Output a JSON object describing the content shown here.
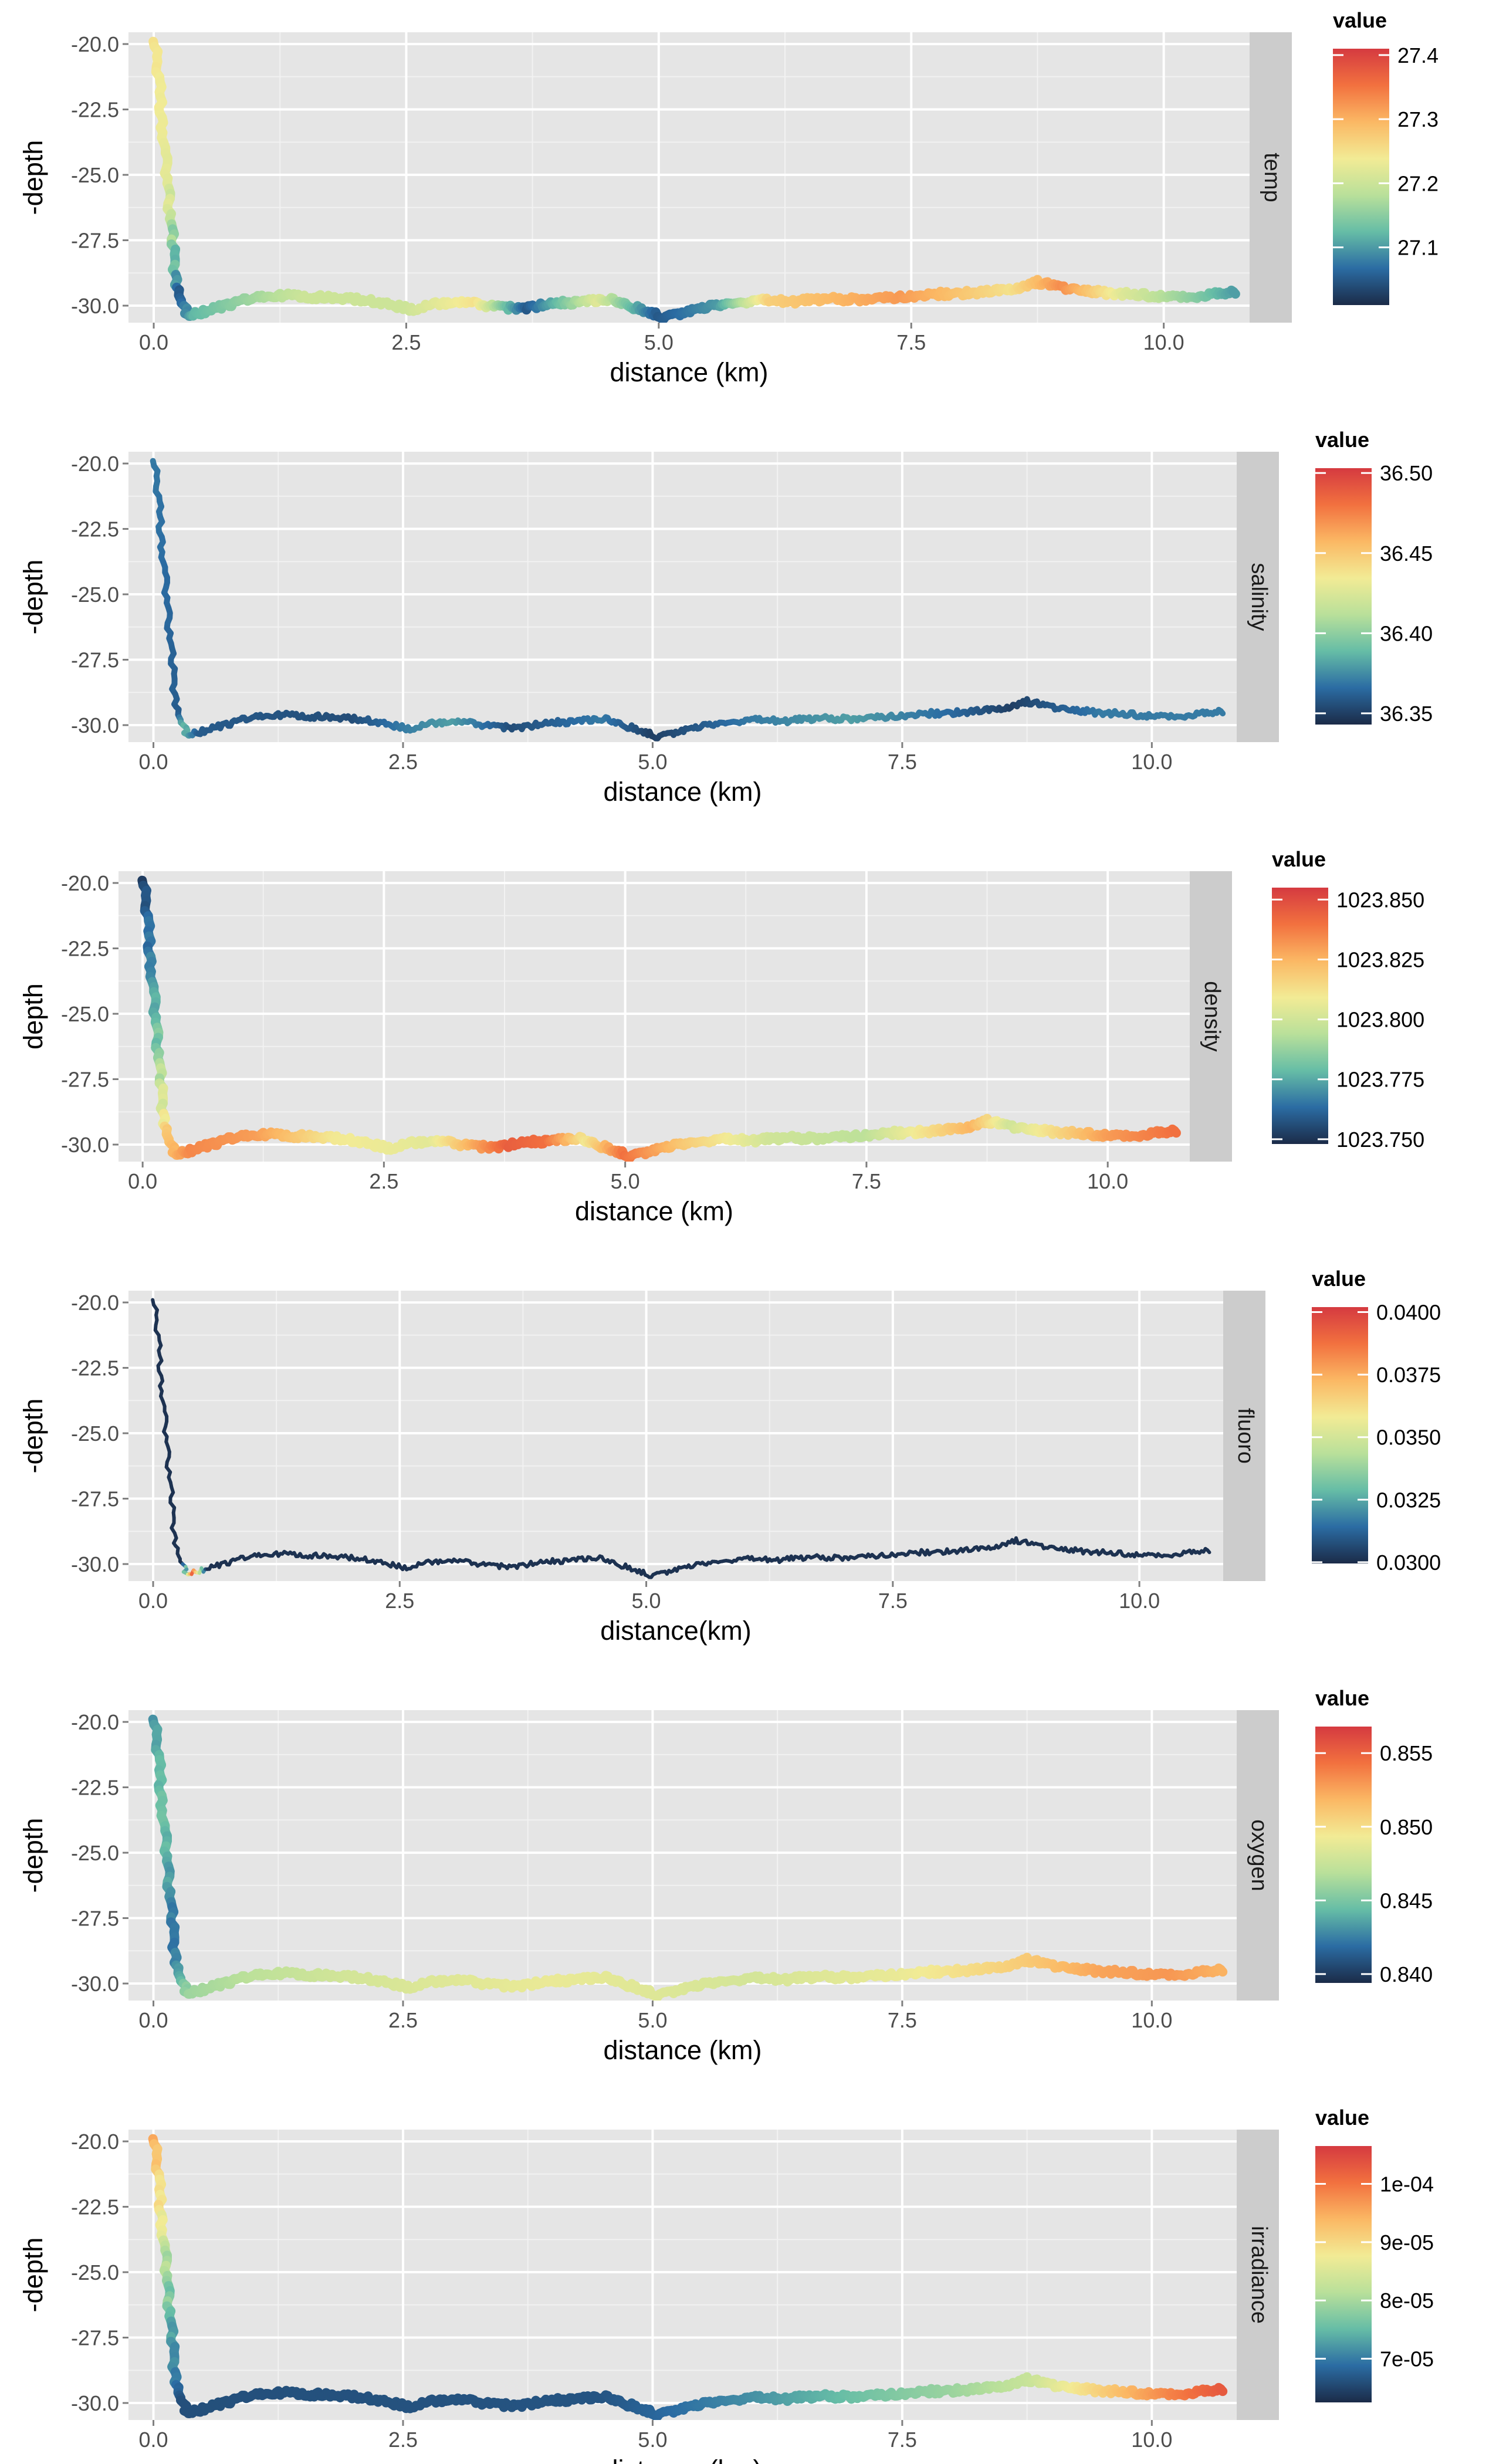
{
  "chart_data": [
    {
      "type": "line",
      "facet_label": "temp",
      "xlabel": "distance (km)",
      "ylabel": "-depth",
      "xlim": [
        -0.25,
        10.85
      ],
      "ylim": [
        -30.65,
        -19.55
      ],
      "x_ticks": [
        "0.0",
        "2.5",
        "5.0",
        "7.5",
        "10.0"
      ],
      "y_ticks": [
        "-20.0",
        "-22.5",
        "-25.0",
        "-27.5",
        "-30.0"
      ],
      "legend": {
        "title": "value",
        "min": 27.01,
        "max": 27.41,
        "ticks": [
          27.1,
          27.2,
          27.3,
          27.4
        ],
        "tick_labels": [
          "27.1",
          "27.2",
          "27.3",
          "27.4"
        ]
      },
      "color_profile": [
        [
          0,
          27.25
        ],
        [
          0.15,
          27.22
        ],
        [
          0.25,
          27.05
        ],
        [
          0.4,
          27.12
        ],
        [
          0.8,
          27.15
        ],
        [
          1.5,
          27.2
        ],
        [
          2.5,
          27.2
        ],
        [
          3.2,
          27.25
        ],
        [
          3.7,
          27.05
        ],
        [
          4.4,
          27.22
        ],
        [
          5.0,
          27.05
        ],
        [
          5.6,
          27.1
        ],
        [
          6.1,
          27.27
        ],
        [
          7.4,
          27.32
        ],
        [
          8.5,
          27.25
        ],
        [
          9.0,
          27.33
        ],
        [
          9.6,
          27.22
        ],
        [
          10.3,
          27.15
        ],
        [
          10.72,
          27.1
        ]
      ]
    },
    {
      "type": "line",
      "facet_label": "salinity",
      "xlabel": "distance (km)",
      "ylabel": "-depth",
      "xlim": [
        -0.25,
        10.85
      ],
      "ylim": [
        -30.65,
        -19.55
      ],
      "x_ticks": [
        "0.0",
        "2.5",
        "5.0",
        "7.5",
        "10.0"
      ],
      "y_ticks": [
        "-20.0",
        "-22.5",
        "-25.0",
        "-27.5",
        "-30.0"
      ],
      "legend": {
        "title": "value",
        "min": 36.343,
        "max": 36.503,
        "ticks": [
          36.35,
          36.4,
          36.45,
          36.5
        ],
        "tick_labels": [
          "36.35",
          "36.40",
          "36.45",
          "36.50"
        ]
      },
      "color_profile": [
        [
          0,
          36.37
        ],
        [
          0.25,
          36.36
        ],
        [
          0.3,
          36.39
        ],
        [
          0.45,
          36.36
        ],
        [
          2.0,
          36.355
        ],
        [
          2.5,
          36.37
        ],
        [
          3.0,
          36.38
        ],
        [
          3.6,
          36.355
        ],
        [
          4.5,
          36.37
        ],
        [
          5.0,
          36.35
        ],
        [
          6.0,
          36.37
        ],
        [
          7.0,
          36.38
        ],
        [
          8.0,
          36.365
        ],
        [
          8.6,
          36.35
        ],
        [
          9.5,
          36.37
        ],
        [
          10.72,
          36.37
        ]
      ]
    },
    {
      "type": "line",
      "facet_label": "density",
      "xlabel": "distance (km)",
      "ylabel": "depth",
      "xlim": [
        -0.25,
        10.85
      ],
      "ylim": [
        -30.65,
        -19.55
      ],
      "x_ticks": [
        "0.0",
        "2.5",
        "5.0",
        "7.5",
        "10.0"
      ],
      "y_ticks": [
        "-20.0",
        "-22.5",
        "-25.0",
        "-27.5",
        "-30.0"
      ],
      "legend": {
        "title": "value",
        "min": 1023.748,
        "max": 1023.855,
        "ticks": [
          1023.75,
          1023.775,
          1023.8,
          1023.825,
          1023.85
        ],
        "tick_labels": [
          "1023.750",
          "1023.775",
          "1023.800",
          "1023.825",
          "1023.850"
        ]
      },
      "color_profile": [
        [
          0,
          1023.752
        ],
        [
          0.15,
          1023.78
        ],
        [
          0.25,
          1023.82
        ],
        [
          0.5,
          1023.835
        ],
        [
          1.2,
          1023.83
        ],
        [
          2.0,
          1023.81
        ],
        [
          3.0,
          1023.805
        ],
        [
          3.8,
          1023.845
        ],
        [
          4.2,
          1023.84
        ],
        [
          4.6,
          1023.81
        ],
        [
          5.0,
          1023.84
        ],
        [
          5.6,
          1023.82
        ],
        [
          6.5,
          1023.8
        ],
        [
          7.5,
          1023.795
        ],
        [
          8.6,
          1023.825
        ],
        [
          9.0,
          1023.8
        ],
        [
          10.0,
          1023.83
        ],
        [
          10.7,
          1023.84
        ]
      ]
    },
    {
      "type": "line",
      "facet_label": "fluoro",
      "xlabel": "distance(km)",
      "ylabel": "-depth",
      "xlim": [
        -0.25,
        10.85
      ],
      "ylim": [
        -30.65,
        -19.55
      ],
      "x_ticks": [
        "0.0",
        "2.5",
        "5.0",
        "7.5",
        "10.0"
      ],
      "y_ticks": [
        "-20.0",
        "-22.5",
        "-25.0",
        "-27.5",
        "-30.0"
      ],
      "legend": {
        "title": "value",
        "min": 0.02995,
        "max": 0.0402,
        "ticks": [
          0.03,
          0.0325,
          0.035,
          0.0375,
          0.04
        ],
        "tick_labels": [
          "0.0300",
          "0.0325",
          "0.0350",
          "0.0375",
          "0.0400"
        ]
      },
      "color_profile": [
        [
          0,
          0.0301
        ],
        [
          0.3,
          0.0301
        ],
        [
          0.4,
          0.039
        ],
        [
          0.55,
          0.0301
        ],
        [
          10.72,
          0.0301
        ]
      ]
    },
    {
      "type": "line",
      "facet_label": "oxygen",
      "xlabel": "distance (km)",
      "ylabel": "-depth",
      "xlim": [
        -0.25,
        10.85
      ],
      "ylim": [
        -30.65,
        -19.55
      ],
      "x_ticks": [
        "0.0",
        "2.5",
        "5.0",
        "7.5",
        "10.0"
      ],
      "y_ticks": [
        "-20.0",
        "-22.5",
        "-25.0",
        "-27.5",
        "-30.0"
      ],
      "legend": {
        "title": "value",
        "min": 0.8394,
        "max": 0.8568,
        "ticks": [
          0.84,
          0.845,
          0.85,
          0.855
        ],
        "tick_labels": [
          "0.840",
          "0.845",
          "0.850",
          "0.855"
        ]
      },
      "color_profile": [
        [
          0,
          0.843
        ],
        [
          0.1,
          0.845
        ],
        [
          0.2,
          0.842
        ],
        [
          0.35,
          0.846
        ],
        [
          1.0,
          0.847
        ],
        [
          2.0,
          0.848
        ],
        [
          3.0,
          0.8485
        ],
        [
          4.0,
          0.849
        ],
        [
          5.0,
          0.8485
        ],
        [
          6.0,
          0.848
        ],
        [
          7.5,
          0.849
        ],
        [
          8.8,
          0.851
        ],
        [
          9.5,
          0.8525
        ],
        [
          10.2,
          0.853
        ],
        [
          10.72,
          0.852
        ]
      ]
    },
    {
      "type": "line",
      "facet_label": "irradiance",
      "xlabel": "distance (km)",
      "ylabel": "-depth",
      "xlim": [
        -0.25,
        10.85
      ],
      "ylim": [
        -30.65,
        -19.55
      ],
      "x_ticks": [
        "0.0",
        "2.5",
        "5.0",
        "7.5",
        "10.0"
      ],
      "y_ticks": [
        "-20.0",
        "-22.5",
        "-25.0",
        "-27.5",
        "-30.0"
      ],
      "legend": {
        "title": "value",
        "min": 6.25e-05,
        "max": 0.0001065,
        "ticks": [
          7e-05,
          8e-05,
          9e-05,
          0.0001
        ],
        "tick_labels": [
          "7e-05",
          "8e-05",
          "9e-05",
          "1e-04"
        ]
      },
      "color_profile": [
        [
          0,
          9.55e-05
        ],
        [
          0.08,
          8.75e-05
        ],
        [
          0.18,
          7.3e-05
        ],
        [
          0.28,
          6.6e-05
        ],
        [
          4.5,
          6.65e-05
        ],
        [
          5.0,
          6.8e-05
        ],
        [
          6.0,
          7.15e-05
        ],
        [
          7.0,
          7.55e-05
        ],
        [
          8.0,
          7.9e-05
        ],
        [
          8.8,
          8.3e-05
        ],
        [
          9.5,
          9.1e-05
        ],
        [
          10.2,
          9.85e-05
        ],
        [
          10.72,
          0.000103
        ]
      ]
    }
  ]
}
